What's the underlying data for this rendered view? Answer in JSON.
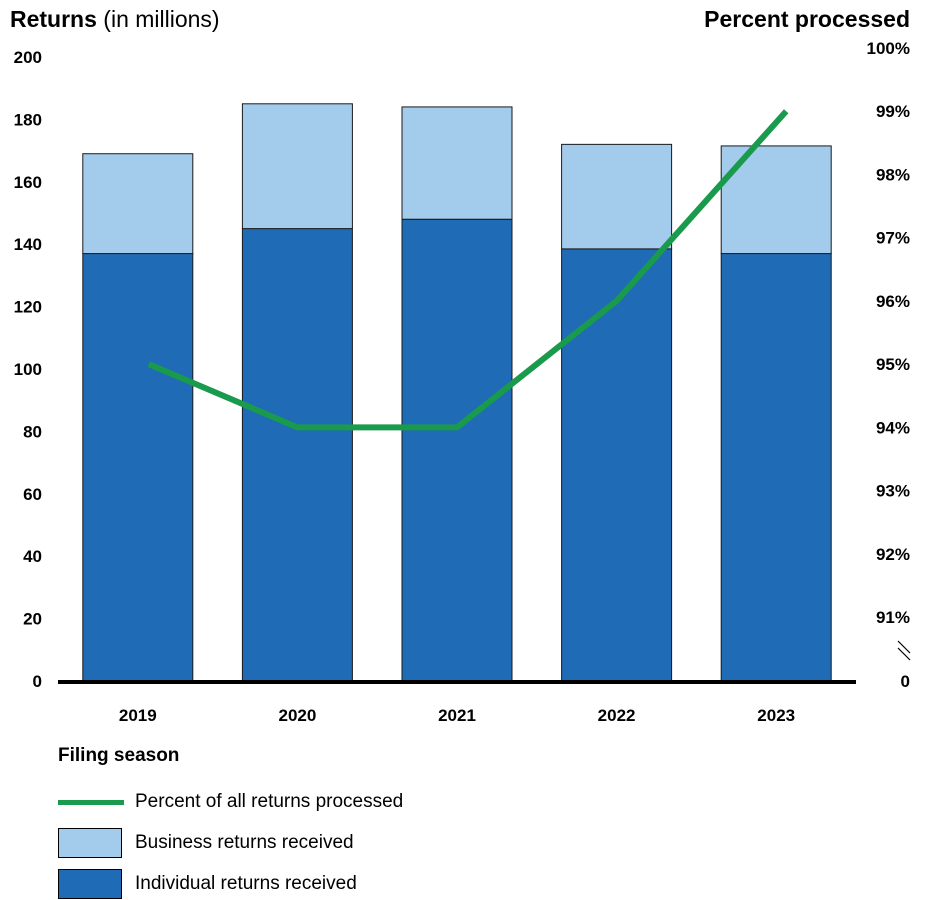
{
  "header": {
    "left_title_bold": "Returns",
    "left_title_rest": " (in millions)",
    "right_title": "Percent processed"
  },
  "legend": {
    "title": "Filing season",
    "items": [
      {
        "label": "Percent of all returns processed",
        "kind": "line",
        "color": "#1a9a4c"
      },
      {
        "label": "Business returns received",
        "kind": "box",
        "color": "#a3cbec"
      },
      {
        "label": "Individual returns received",
        "kind": "box",
        "color": "#1f6bb5"
      }
    ]
  },
  "chart_data": {
    "type": "bar",
    "stacked": true,
    "categories": [
      "2019",
      "2020",
      "2021",
      "2022",
      "2023"
    ],
    "series": [
      {
        "name": "Individual returns received",
        "values": [
          137,
          145,
          148,
          138.5,
          137
        ],
        "color": "#1f6bb5"
      },
      {
        "name": "Business returns received",
        "values": [
          32,
          40,
          36,
          33.5,
          34.5
        ],
        "color": "#a3cbec"
      }
    ],
    "line_series": {
      "name": "Percent of all returns processed",
      "values": [
        95,
        94,
        94,
        96,
        99
      ],
      "color": "#1a9a4c",
      "axis": "right"
    },
    "left_axis": {
      "ylim": [
        0,
        200
      ],
      "ticks": [
        "0",
        "20",
        "40",
        "60",
        "80",
        "100",
        "120",
        "140",
        "160",
        "180",
        "200"
      ]
    },
    "right_axis": {
      "ylim": [
        90,
        100
      ],
      "axis_break": true,
      "ticks": [
        "0",
        "91%",
        "92%",
        "93%",
        "94%",
        "95%",
        "96%",
        "97%",
        "98%",
        "99%",
        "100%"
      ]
    },
    "grid": false
  }
}
